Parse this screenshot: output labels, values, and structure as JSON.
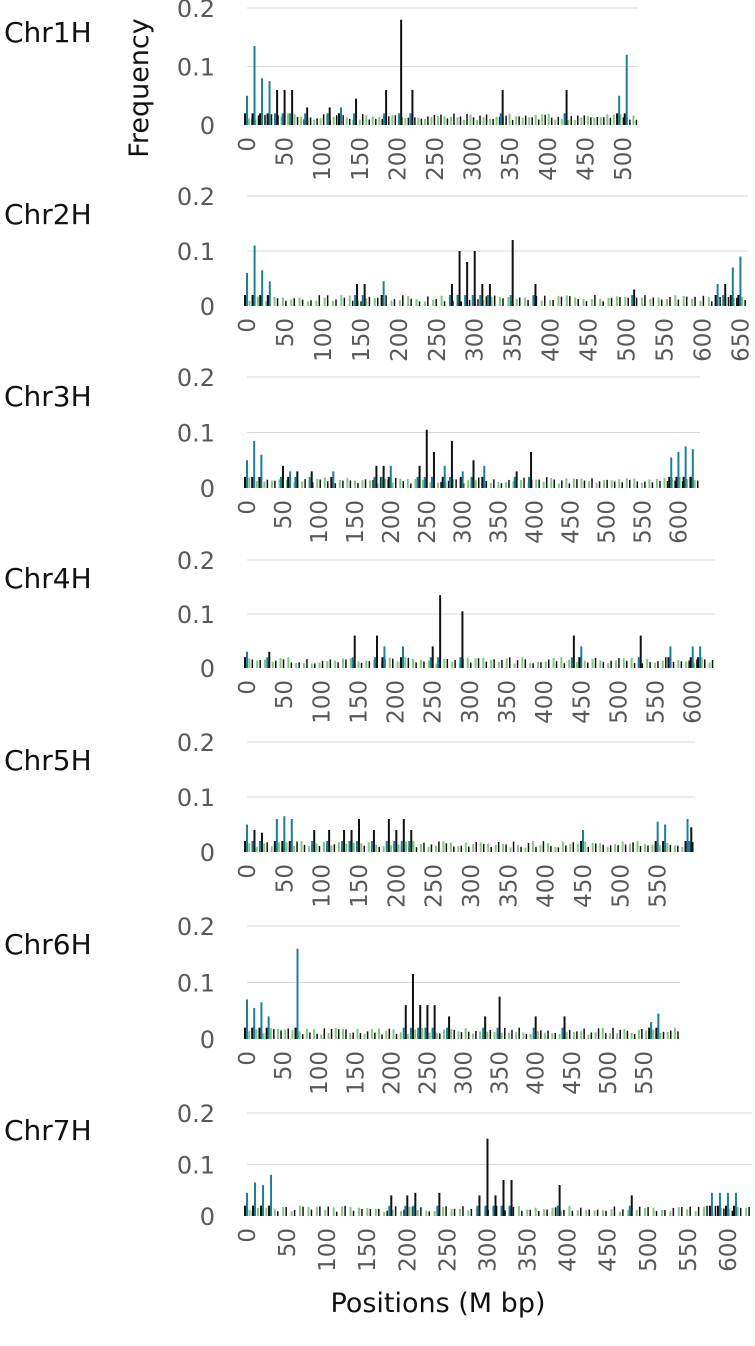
{
  "chart_data": {
    "type": "bar",
    "ylabel": "Frequency",
    "xlabel": "Positions (M bp)",
    "ylim": [
      0,
      0.2
    ],
    "grid": true,
    "legend": "none",
    "series_colors": [
      "#1a7f9a",
      "#111111",
      "#7fc97f"
    ],
    "panels": [
      {
        "label": "Chr1H",
        "y_ticks": [
          "0",
          "0.1",
          "0.2"
        ],
        "x_ticks": [
          "0",
          "50",
          "100",
          "150",
          "200",
          "250",
          "300",
          "350",
          "400",
          "450",
          "500"
        ],
        "x_max": 520,
        "peaks": [
          [
            0,
            0.05,
            0
          ],
          [
            10,
            0.135,
            0
          ],
          [
            20,
            0.08,
            0
          ],
          [
            30,
            0.075,
            0
          ],
          [
            40,
            0.06,
            1
          ],
          [
            50,
            0.06,
            1
          ],
          [
            60,
            0.06,
            1
          ],
          [
            80,
            0.03,
            1
          ],
          [
            110,
            0.03,
            1
          ],
          [
            125,
            0.03,
            0
          ],
          [
            145,
            0.045,
            1
          ],
          [
            185,
            0.06,
            1
          ],
          [
            205,
            0.18,
            1
          ],
          [
            220,
            0.06,
            1
          ],
          [
            340,
            0.06,
            1
          ],
          [
            425,
            0.06,
            1
          ],
          [
            495,
            0.05,
            0
          ],
          [
            505,
            0.12,
            0
          ]
        ]
      },
      {
        "label": "Chr2H",
        "y_ticks": [
          "0",
          "0.1",
          "0.2"
        ],
        "x_ticks": [
          "0",
          "50",
          "100",
          "150",
          "200",
          "250",
          "300",
          "350",
          "400",
          "450",
          "500",
          "550",
          "600",
          "650"
        ],
        "x_max": 660,
        "peaks": [
          [
            0,
            0.06,
            0
          ],
          [
            10,
            0.11,
            0
          ],
          [
            20,
            0.065,
            0
          ],
          [
            30,
            0.045,
            0
          ],
          [
            145,
            0.04,
            1
          ],
          [
            155,
            0.04,
            1
          ],
          [
            180,
            0.045,
            0
          ],
          [
            270,
            0.04,
            1
          ],
          [
            280,
            0.1,
            1
          ],
          [
            290,
            0.08,
            1
          ],
          [
            300,
            0.1,
            1
          ],
          [
            310,
            0.04,
            1
          ],
          [
            320,
            0.04,
            1
          ],
          [
            350,
            0.12,
            1
          ],
          [
            380,
            0.04,
            1
          ],
          [
            510,
            0.03,
            1
          ],
          [
            620,
            0.04,
            0
          ],
          [
            630,
            0.04,
            1
          ],
          [
            640,
            0.07,
            0
          ],
          [
            650,
            0.09,
            0
          ]
        ]
      },
      {
        "label": "Chr3H",
        "y_ticks": [
          "0",
          "0.1",
          "0.2"
        ],
        "x_ticks": [
          "0",
          "50",
          "100",
          "150",
          "200",
          "250",
          "300",
          "350",
          "400",
          "450",
          "500",
          "550",
          "600"
        ],
        "x_max": 630,
        "peaks": [
          [
            0,
            0.05,
            0
          ],
          [
            10,
            0.085,
            0
          ],
          [
            20,
            0.06,
            0
          ],
          [
            50,
            0.04,
            1
          ],
          [
            60,
            0.03,
            0
          ],
          [
            70,
            0.03,
            1
          ],
          [
            90,
            0.03,
            1
          ],
          [
            120,
            0.03,
            0
          ],
          [
            180,
            0.04,
            1
          ],
          [
            190,
            0.04,
            1
          ],
          [
            200,
            0.04,
            0
          ],
          [
            240,
            0.04,
            1
          ],
          [
            250,
            0.105,
            1
          ],
          [
            260,
            0.065,
            1
          ],
          [
            275,
            0.04,
            0
          ],
          [
            285,
            0.085,
            1
          ],
          [
            300,
            0.03,
            0
          ],
          [
            315,
            0.05,
            1
          ],
          [
            330,
            0.04,
            0
          ],
          [
            375,
            0.03,
            1
          ],
          [
            395,
            0.065,
            1
          ],
          [
            590,
            0.055,
            0
          ],
          [
            600,
            0.065,
            0
          ],
          [
            610,
            0.075,
            0
          ],
          [
            620,
            0.07,
            0
          ]
        ]
      },
      {
        "label": "Chr4H",
        "y_ticks": [
          "0",
          "0.1",
          "0.2"
        ],
        "x_ticks": [
          "0",
          "50",
          "100",
          "150",
          "200",
          "250",
          "300",
          "350",
          "400",
          "450",
          "500",
          "550",
          "600"
        ],
        "x_max": 630,
        "peaks": [
          [
            0,
            0.03,
            0
          ],
          [
            30,
            0.03,
            1
          ],
          [
            145,
            0.06,
            1
          ],
          [
            175,
            0.06,
            1
          ],
          [
            185,
            0.04,
            0
          ],
          [
            210,
            0.04,
            0
          ],
          [
            250,
            0.04,
            1
          ],
          [
            260,
            0.135,
            1
          ],
          [
            290,
            0.105,
            1
          ],
          [
            440,
            0.06,
            1
          ],
          [
            450,
            0.04,
            0
          ],
          [
            530,
            0.06,
            1
          ],
          [
            570,
            0.04,
            0
          ],
          [
            600,
            0.04,
            0
          ],
          [
            610,
            0.04,
            0
          ]
        ]
      },
      {
        "label": "Chr5H",
        "y_ticks": [
          "0",
          "0.1",
          "0.2"
        ],
        "x_ticks": [
          "0",
          "50",
          "100",
          "150",
          "200",
          "250",
          "300",
          "350",
          "400",
          "450",
          "500",
          "550"
        ],
        "x_max": 600,
        "peaks": [
          [
            0,
            0.05,
            0
          ],
          [
            10,
            0.04,
            1
          ],
          [
            20,
            0.035,
            1
          ],
          [
            40,
            0.06,
            0
          ],
          [
            50,
            0.065,
            0
          ],
          [
            60,
            0.06,
            0
          ],
          [
            90,
            0.04,
            1
          ],
          [
            110,
            0.04,
            1
          ],
          [
            130,
            0.04,
            1
          ],
          [
            140,
            0.04,
            1
          ],
          [
            150,
            0.06,
            1
          ],
          [
            170,
            0.04,
            1
          ],
          [
            190,
            0.06,
            1
          ],
          [
            200,
            0.04,
            1
          ],
          [
            210,
            0.06,
            1
          ],
          [
            220,
            0.04,
            1
          ],
          [
            450,
            0.04,
            0
          ],
          [
            550,
            0.055,
            0
          ],
          [
            560,
            0.05,
            0
          ],
          [
            590,
            0.06,
            0
          ],
          [
            595,
            0.045,
            1
          ]
        ]
      },
      {
        "label": "Chr6H",
        "y_ticks": [
          "0",
          "0.1",
          "0.2"
        ],
        "x_ticks": [
          "0",
          "50",
          "100",
          "150",
          "200",
          "250",
          "300",
          "350",
          "400",
          "450",
          "500",
          "550"
        ],
        "x_max": 600,
        "peaks": [
          [
            0,
            0.07,
            0
          ],
          [
            10,
            0.055,
            0
          ],
          [
            20,
            0.065,
            0
          ],
          [
            30,
            0.04,
            0
          ],
          [
            70,
            0.16,
            0
          ],
          [
            220,
            0.06,
            1
          ],
          [
            230,
            0.115,
            1
          ],
          [
            240,
            0.06,
            1
          ],
          [
            250,
            0.06,
            1
          ],
          [
            260,
            0.06,
            1
          ],
          [
            280,
            0.04,
            1
          ],
          [
            330,
            0.04,
            1
          ],
          [
            350,
            0.075,
            1
          ],
          [
            400,
            0.04,
            1
          ],
          [
            440,
            0.04,
            1
          ],
          [
            560,
            0.03,
            0
          ],
          [
            570,
            0.045,
            0
          ]
        ]
      },
      {
        "label": "Chr7H",
        "y_ticks": [
          "0",
          "0.1",
          "0.2"
        ],
        "x_ticks": [
          "0",
          "50",
          "100",
          "150",
          "200",
          "250",
          "300",
          "350",
          "400",
          "450",
          "500",
          "550",
          "600"
        ],
        "x_max": 630,
        "peaks": [
          [
            0,
            0.045,
            0
          ],
          [
            10,
            0.065,
            0
          ],
          [
            20,
            0.06,
            0
          ],
          [
            30,
            0.08,
            0
          ],
          [
            180,
            0.04,
            1
          ],
          [
            200,
            0.04,
            1
          ],
          [
            210,
            0.045,
            1
          ],
          [
            240,
            0.045,
            1
          ],
          [
            290,
            0.04,
            1
          ],
          [
            300,
            0.15,
            1
          ],
          [
            310,
            0.04,
            1
          ],
          [
            320,
            0.07,
            1
          ],
          [
            330,
            0.07,
            1
          ],
          [
            390,
            0.06,
            1
          ],
          [
            480,
            0.04,
            1
          ],
          [
            580,
            0.045,
            0
          ],
          [
            590,
            0.045,
            0
          ],
          [
            600,
            0.045,
            0
          ],
          [
            610,
            0.045,
            0
          ]
        ]
      }
    ]
  }
}
